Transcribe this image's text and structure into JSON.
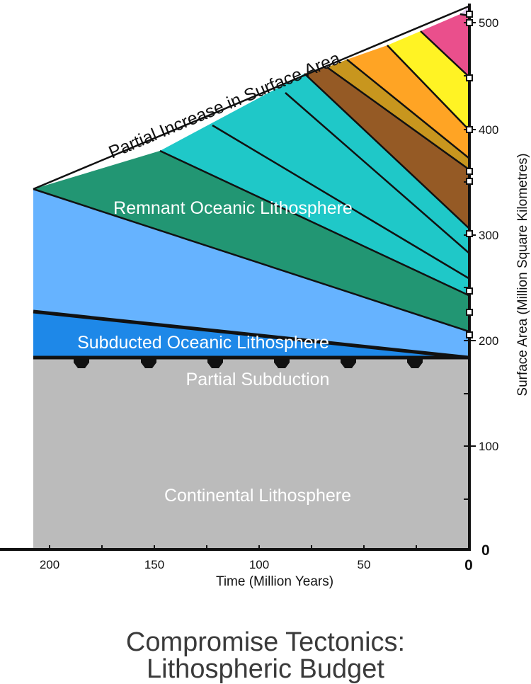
{
  "figure": {
    "caption_line1": "Compromise Tectonics:",
    "caption_line2": "Lithospheric Budget"
  },
  "axes": {
    "x_label": "Time (Million Years)",
    "y_label": "Surface Area (Million Square Kilometres)",
    "x_ticks": [
      "200",
      "150",
      "100",
      "50",
      "0"
    ],
    "y_ticks": [
      "500",
      "400",
      "300",
      "200",
      "100",
      "0"
    ]
  },
  "labels": {
    "increase": "Partial Increase in Surface Area",
    "remnant": "Remnant Oceanic Lithosphere",
    "subducted": "Subducted Oceanic Lithosphere",
    "partial_subduction": "Partial Subduction",
    "continental": "Continental Lithosphere"
  },
  "colors": {
    "continental": "#bbbbbb",
    "subducted": "#1e88e8",
    "light_blue": "#66b3ff",
    "green": "#229673",
    "teal": "#1fc8c8",
    "brown": "#955a25",
    "gold": "#c8961e",
    "orange": "#ffa424",
    "yellow": "#fff324",
    "pink": "#ea4f8c",
    "lavender": "#e8d0f0",
    "line": "#111111"
  },
  "chart_data": {
    "type": "area",
    "title": "",
    "xlabel": "Time (Million Years)",
    "ylabel": "Surface Area (Million Square Kilometres)",
    "xlim": [
      0,
      210
    ],
    "ylim": [
      0,
      520
    ],
    "x_reversed": true,
    "layers": [
      {
        "name": "Continental Lithosphere",
        "bottom": [
          [
            208,
            0
          ],
          [
            0,
            0
          ]
        ],
        "top": [
          [
            208,
            148
          ],
          [
            0,
            148
          ]
        ]
      },
      {
        "name": "Subducted Oceanic Lithosphere",
        "bottom": [
          [
            208,
            148
          ],
          [
            0,
            148
          ]
        ],
        "top": [
          [
            208,
            228
          ],
          [
            0,
            148
          ]
        ]
      },
      {
        "name": "Remnant Oceanic Lithosphere",
        "bottom": [
          [
            208,
            228
          ],
          [
            0,
            148
          ]
        ],
        "top": [
          [
            208,
            325
          ],
          [
            0,
            205
          ]
        ]
      },
      {
        "name": "Partial Increase in Surface Area",
        "bottom": [
          [
            208,
            325
          ],
          [
            0,
            205
          ]
        ],
        "top": [
          [
            208,
            325
          ],
          [
            0,
            515
          ]
        ]
      }
    ]
  }
}
